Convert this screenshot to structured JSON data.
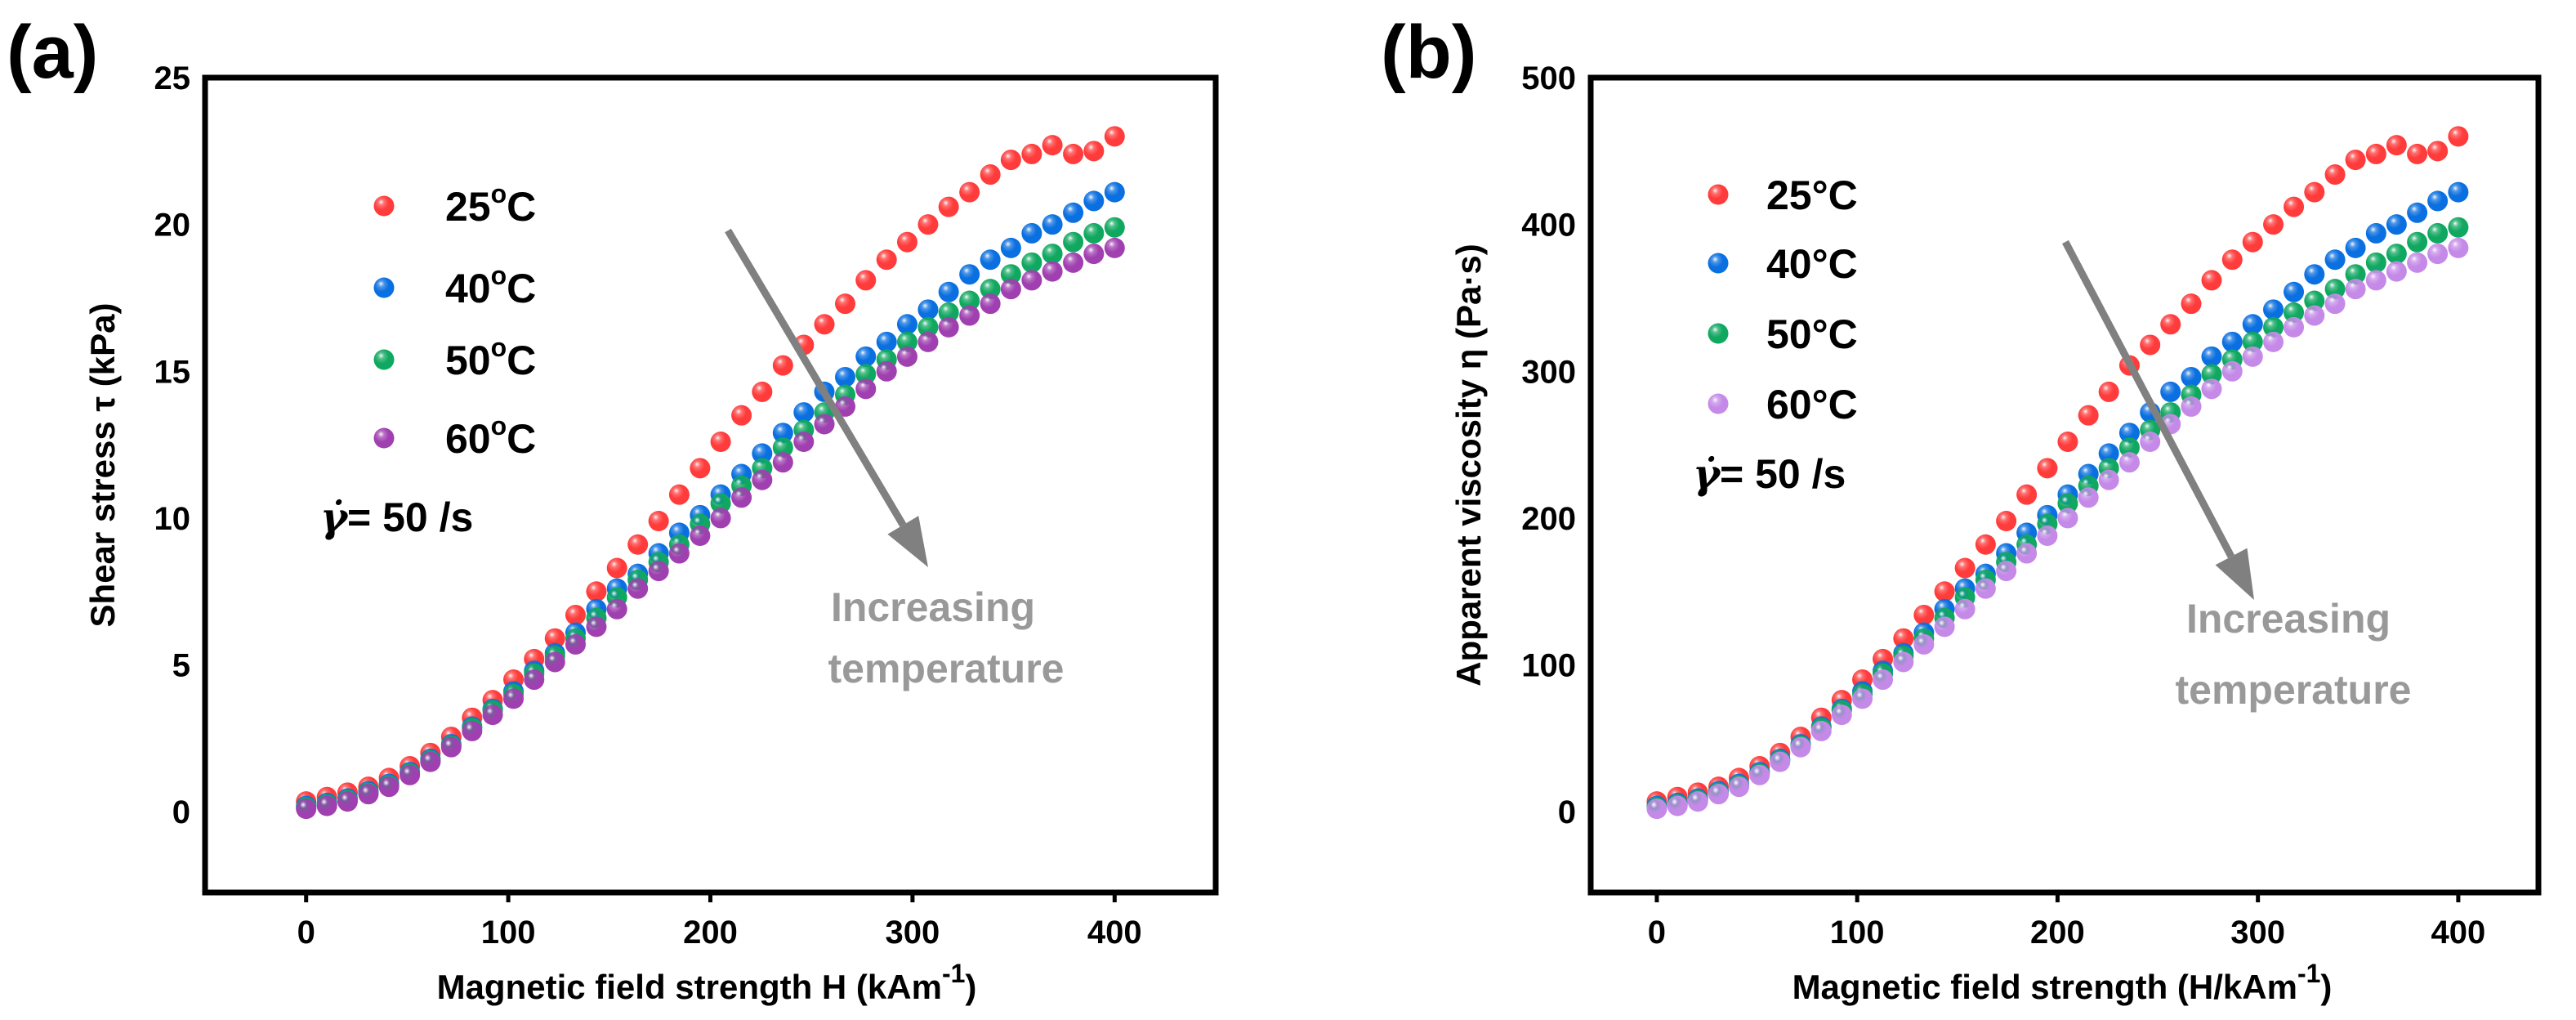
{
  "chart_data": [
    {
      "type": "scatter",
      "panel_label": "(a)",
      "xlabel": "Magnetic field strength H (kAm",
      "xlabel_sup": "-1",
      "xlabel_end": ")",
      "ylabel": "Shear stress τ (kPa)",
      "xlim": [
        -50,
        450
      ],
      "ylim": [
        -2.75,
        25
      ],
      "xticks": [
        0,
        100,
        200,
        300,
        400
      ],
      "yticks": [
        0,
        5,
        10,
        15,
        20,
        25
      ],
      "grid": false,
      "legend_placement": "top-left",
      "annotation_rate": "= 50 /s",
      "annotation_rate_symbol": "γ̇",
      "annotation_arrow": [
        "Increasing",
        "temperature"
      ],
      "x": [
        0,
        10.3,
        20.5,
        30.8,
        41,
        51.3,
        61.5,
        71.8,
        82.1,
        92.3,
        102.6,
        112.8,
        123.1,
        133.3,
        143.6,
        153.8,
        164.1,
        174.4,
        184.6,
        194.9,
        205.1,
        215.4,
        225.6,
        235.9,
        246.2,
        256.4,
        266.7,
        276.9,
        287.2,
        297.4,
        307.7,
        317.9,
        328.2,
        338.5,
        348.7,
        359,
        369.2,
        379.5,
        389.7,
        400
      ],
      "series": [
        {
          "name": "25",
          "unit_sup": "o",
          "unit": "C",
          "color": "#ff3b3b",
          "values": [
            0.35,
            0.5,
            0.65,
            0.85,
            1.15,
            1.55,
            2.0,
            2.55,
            3.2,
            3.8,
            4.5,
            5.2,
            5.9,
            6.7,
            7.5,
            8.3,
            9.1,
            9.9,
            10.8,
            11.7,
            12.6,
            13.5,
            14.3,
            15.2,
            15.9,
            16.6,
            17.3,
            18.1,
            18.8,
            19.4,
            20.0,
            20.6,
            21.1,
            21.7,
            22.2,
            22.4,
            22.7,
            22.4,
            22.5,
            23.0
          ]
        },
        {
          "name": "40",
          "unit_sup": "o",
          "unit": "C",
          "color": "#0a6fe0",
          "values": [
            0.2,
            0.3,
            0.45,
            0.7,
            0.95,
            1.35,
            1.8,
            2.3,
            2.9,
            3.5,
            4.1,
            4.8,
            5.4,
            6.1,
            6.9,
            7.6,
            8.1,
            8.8,
            9.5,
            10.1,
            10.8,
            11.5,
            12.2,
            12.9,
            13.6,
            14.3,
            14.8,
            15.5,
            16.0,
            16.6,
            17.1,
            17.7,
            18.3,
            18.8,
            19.2,
            19.7,
            20.0,
            20.4,
            20.8,
            21.1
          ]
        },
        {
          "name": "50",
          "unit_sup": "o",
          "unit": "C",
          "color": "#10a860",
          "values": [
            0.15,
            0.25,
            0.4,
            0.65,
            0.9,
            1.3,
            1.75,
            2.25,
            2.85,
            3.45,
            4.0,
            4.7,
            5.3,
            5.9,
            6.6,
            7.3,
            7.9,
            8.5,
            9.1,
            9.8,
            10.5,
            11.1,
            11.7,
            12.4,
            13.0,
            13.6,
            14.2,
            14.9,
            15.4,
            16.0,
            16.5,
            17.0,
            17.4,
            17.8,
            18.3,
            18.7,
            19.0,
            19.4,
            19.7,
            19.9
          ]
        },
        {
          "name": "60",
          "unit_sup": "o",
          "unit": "C",
          "color": "#a040b0",
          "values": [
            0.1,
            0.2,
            0.35,
            0.6,
            0.85,
            1.25,
            1.7,
            2.2,
            2.75,
            3.3,
            3.85,
            4.5,
            5.1,
            5.7,
            6.3,
            6.9,
            7.6,
            8.2,
            8.8,
            9.4,
            10.0,
            10.7,
            11.3,
            11.9,
            12.6,
            13.2,
            13.8,
            14.4,
            15.0,
            15.5,
            16.0,
            16.5,
            16.9,
            17.3,
            17.8,
            18.1,
            18.4,
            18.7,
            19.0,
            19.2
          ]
        }
      ]
    },
    {
      "type": "scatter",
      "panel_label": "(b)",
      "xlabel": "Magnetic field strength (H/kAm",
      "xlabel_sup": "-1",
      "xlabel_end": ")",
      "ylabel": "Apparent viscosity η (Pa·s)",
      "xlim": [
        -33,
        440
      ],
      "ylim": [
        -55,
        500
      ],
      "xticks": [
        0,
        100,
        200,
        300,
        400
      ],
      "yticks": [
        0,
        100,
        200,
        300,
        400,
        500
      ],
      "grid": false,
      "legend_placement": "top-left",
      "annotation_rate": "= 50 /s",
      "annotation_rate_symbol": "γ̇",
      "annotation_arrow": [
        "Increasing",
        "temperature"
      ],
      "x": [
        0,
        10.3,
        20.5,
        30.8,
        41,
        51.3,
        61.5,
        71.8,
        82.1,
        92.3,
        102.6,
        112.8,
        123.1,
        133.3,
        143.6,
        153.8,
        164.1,
        174.4,
        184.6,
        194.9,
        205.1,
        215.4,
        225.6,
        235.9,
        246.2,
        256.4,
        266.7,
        276.9,
        287.2,
        297.4,
        307.7,
        317.9,
        328.2,
        338.5,
        348.7,
        359,
        369.2,
        379.5,
        389.7,
        400
      ],
      "series": [
        {
          "name": "25°C",
          "color": "#ff3b3b",
          "values": [
            7,
            10,
            13,
            17,
            23,
            31,
            40,
            51,
            64,
            76,
            90,
            104,
            118,
            134,
            150,
            166,
            182,
            198,
            216,
            234,
            252,
            270,
            286,
            304,
            318,
            332,
            346,
            362,
            376,
            388,
            400,
            412,
            422,
            434,
            444,
            448,
            454,
            448,
            450,
            460
          ]
        },
        {
          "name": "40°C",
          "color": "#0a6fe0",
          "values": [
            4,
            6,
            9,
            14,
            19,
            27,
            36,
            46,
            58,
            70,
            82,
            96,
            108,
            122,
            138,
            152,
            162,
            176,
            190,
            202,
            216,
            230,
            244,
            258,
            272,
            286,
            296,
            310,
            320,
            332,
            342,
            354,
            366,
            376,
            384,
            394,
            400,
            408,
            416,
            422
          ]
        },
        {
          "name": "50°C",
          "color": "#10a860",
          "values": [
            3,
            5,
            8,
            13,
            18,
            26,
            35,
            45,
            57,
            69,
            80,
            94,
            106,
            118,
            132,
            146,
            158,
            170,
            182,
            196,
            210,
            222,
            234,
            248,
            260,
            272,
            284,
            298,
            308,
            320,
            330,
            340,
            348,
            356,
            366,
            374,
            380,
            388,
            394,
            398
          ]
        },
        {
          "name": "60°C",
          "color": "#c58ae8",
          "values": [
            2,
            4,
            7,
            12,
            17,
            25,
            34,
            44,
            55,
            66,
            77,
            90,
            102,
            114,
            126,
            138,
            152,
            164,
            176,
            188,
            200,
            214,
            226,
            238,
            252,
            264,
            276,
            288,
            300,
            310,
            320,
            330,
            338,
            346,
            356,
            362,
            368,
            374,
            380,
            384
          ]
        }
      ]
    }
  ]
}
